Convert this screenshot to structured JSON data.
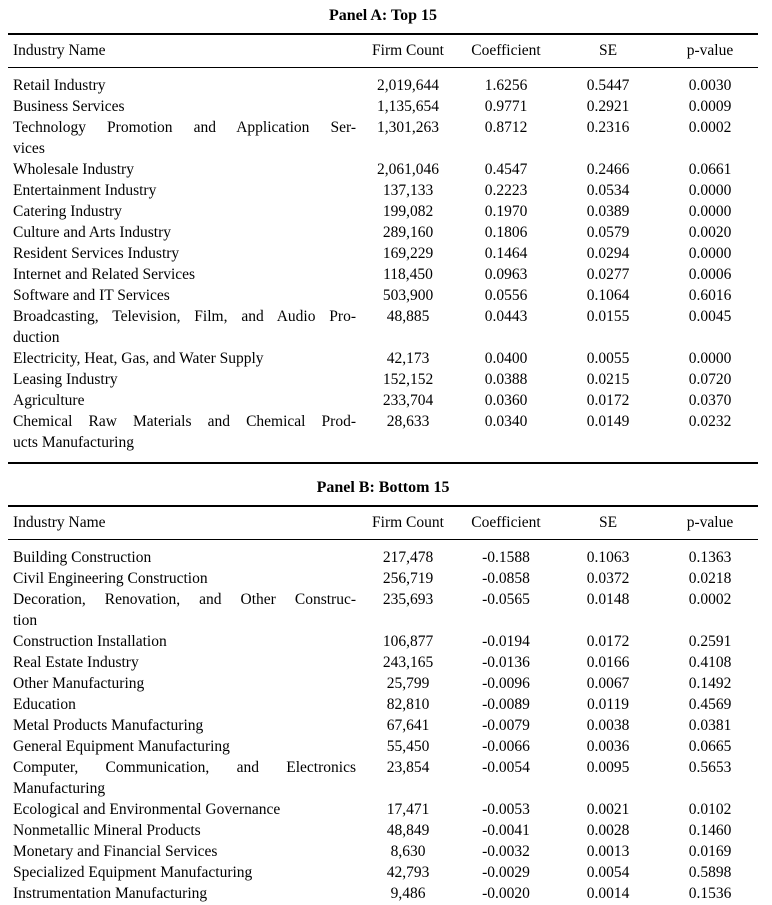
{
  "panels": [
    {
      "title": "Panel A: Top 15",
      "columns": [
        "Industry Name",
        "Firm Count",
        "Coefficient",
        "SE",
        "p-value"
      ],
      "rows": [
        {
          "name_lines": [
            "Retail Industry"
          ],
          "firm_count": "2,019,644",
          "coefficient": "1.6256",
          "se": "0.5447",
          "p_value": "0.0030"
        },
        {
          "name_lines": [
            "Business Services"
          ],
          "firm_count": "1,135,654",
          "coefficient": "0.9771",
          "se": "0.2921",
          "p_value": "0.0009"
        },
        {
          "name_lines": [
            "Technology Promotion and Application Ser-",
            "vices"
          ],
          "firm_count": "1,301,263",
          "coefficient": "0.8712",
          "se": "0.2316",
          "p_value": "0.0002"
        },
        {
          "name_lines": [
            "Wholesale Industry"
          ],
          "firm_count": "2,061,046",
          "coefficient": "0.4547",
          "se": "0.2466",
          "p_value": "0.0661"
        },
        {
          "name_lines": [
            "Entertainment Industry"
          ],
          "firm_count": "137,133",
          "coefficient": "0.2223",
          "se": "0.0534",
          "p_value": "0.0000"
        },
        {
          "name_lines": [
            "Catering Industry"
          ],
          "firm_count": "199,082",
          "coefficient": "0.1970",
          "se": "0.0389",
          "p_value": "0.0000"
        },
        {
          "name_lines": [
            "Culture and Arts Industry"
          ],
          "firm_count": "289,160",
          "coefficient": "0.1806",
          "se": "0.0579",
          "p_value": "0.0020"
        },
        {
          "name_lines": [
            "Resident Services Industry"
          ],
          "firm_count": "169,229",
          "coefficient": "0.1464",
          "se": "0.0294",
          "p_value": "0.0000"
        },
        {
          "name_lines": [
            "Internet and Related Services"
          ],
          "firm_count": "118,450",
          "coefficient": "0.0963",
          "se": "0.0277",
          "p_value": "0.0006"
        },
        {
          "name_lines": [
            "Software and IT Services"
          ],
          "firm_count": "503,900",
          "coefficient": "0.0556",
          "se": "0.1064",
          "p_value": "0.6016"
        },
        {
          "name_lines": [
            "Broadcasting, Television, Film, and Audio Pro-",
            "duction"
          ],
          "firm_count": "48,885",
          "coefficient": "0.0443",
          "se": "0.0155",
          "p_value": "0.0045"
        },
        {
          "name_lines": [
            "Electricity, Heat, Gas, and Water Supply"
          ],
          "firm_count": "42,173",
          "coefficient": "0.0400",
          "se": "0.0055",
          "p_value": "0.0000"
        },
        {
          "name_lines": [
            "Leasing Industry"
          ],
          "firm_count": "152,152",
          "coefficient": "0.0388",
          "se": "0.0215",
          "p_value": "0.0720"
        },
        {
          "name_lines": [
            "Agriculture"
          ],
          "firm_count": "233,704",
          "coefficient": "0.0360",
          "se": "0.0172",
          "p_value": "0.0370"
        },
        {
          "name_lines": [
            "Chemical Raw Materials and Chemical Prod-",
            "ucts Manufacturing"
          ],
          "firm_count": "28,633",
          "coefficient": "0.0340",
          "se": "0.0149",
          "p_value": "0.0232"
        }
      ]
    },
    {
      "title": "Panel B: Bottom 15",
      "columns": [
        "Industry Name",
        "Firm Count",
        "Coefficient",
        "SE",
        "p-value"
      ],
      "rows": [
        {
          "name_lines": [
            "Building Construction"
          ],
          "firm_count": "217,478",
          "coefficient": "-0.1588",
          "se": "0.1063",
          "p_value": "0.1363"
        },
        {
          "name_lines": [
            "Civil Engineering Construction"
          ],
          "firm_count": "256,719",
          "coefficient": "-0.0858",
          "se": "0.0372",
          "p_value": "0.0218"
        },
        {
          "name_lines": [
            "Decoration, Renovation, and Other Construc-",
            "tion"
          ],
          "firm_count": "235,693",
          "coefficient": "-0.0565",
          "se": "0.0148",
          "p_value": "0.0002"
        },
        {
          "name_lines": [
            "Construction Installation"
          ],
          "firm_count": "106,877",
          "coefficient": "-0.0194",
          "se": "0.0172",
          "p_value": "0.2591"
        },
        {
          "name_lines": [
            "Real Estate Industry"
          ],
          "firm_count": "243,165",
          "coefficient": "-0.0136",
          "se": "0.0166",
          "p_value": "0.4108"
        },
        {
          "name_lines": [
            "Other Manufacturing"
          ],
          "firm_count": "25,799",
          "coefficient": "-0.0096",
          "se": "0.0067",
          "p_value": "0.1492"
        },
        {
          "name_lines": [
            "Education"
          ],
          "firm_count": "82,810",
          "coefficient": "-0.0089",
          "se": "0.0119",
          "p_value": "0.4569"
        },
        {
          "name_lines": [
            "Metal Products Manufacturing"
          ],
          "firm_count": "67,641",
          "coefficient": "-0.0079",
          "se": "0.0038",
          "p_value": "0.0381"
        },
        {
          "name_lines": [
            "General Equipment Manufacturing"
          ],
          "firm_count": "55,450",
          "coefficient": "-0.0066",
          "se": "0.0036",
          "p_value": "0.0665"
        },
        {
          "name_lines": [
            "Computer, Communication, and Electronics",
            "Manufacturing"
          ],
          "firm_count": "23,854",
          "coefficient": "-0.0054",
          "se": "0.0095",
          "p_value": "0.5653"
        },
        {
          "name_lines": [
            "Ecological and Environmental Governance"
          ],
          "firm_count": "17,471",
          "coefficient": "-0.0053",
          "se": "0.0021",
          "p_value": "0.0102"
        },
        {
          "name_lines": [
            "Nonmetallic Mineral Products"
          ],
          "firm_count": "48,849",
          "coefficient": "-0.0041",
          "se": "0.0028",
          "p_value": "0.1460"
        },
        {
          "name_lines": [
            "Monetary and Financial Services"
          ],
          "firm_count": "8,630",
          "coefficient": "-0.0032",
          "se": "0.0013",
          "p_value": "0.0169"
        },
        {
          "name_lines": [
            "Specialized Equipment Manufacturing"
          ],
          "firm_count": "42,793",
          "coefficient": "-0.0029",
          "se": "0.0054",
          "p_value": "0.5898"
        },
        {
          "name_lines": [
            "Instrumentation Manufacturing"
          ],
          "firm_count": "9,486",
          "coefficient": "-0.0020",
          "se": "0.0014",
          "p_value": "0.1536"
        }
      ]
    }
  ]
}
